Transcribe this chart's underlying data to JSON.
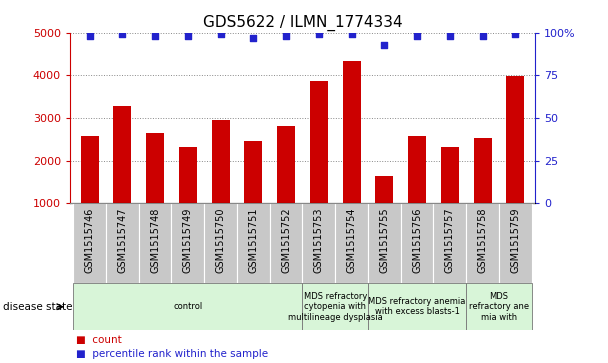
{
  "title": "GDS5622 / ILMN_1774334",
  "samples": [
    "GSM1515746",
    "GSM1515747",
    "GSM1515748",
    "GSM1515749",
    "GSM1515750",
    "GSM1515751",
    "GSM1515752",
    "GSM1515753",
    "GSM1515754",
    "GSM1515755",
    "GSM1515756",
    "GSM1515757",
    "GSM1515758",
    "GSM1515759"
  ],
  "counts": [
    2570,
    3270,
    2640,
    2310,
    2960,
    2460,
    2810,
    3870,
    4330,
    1650,
    2570,
    2320,
    2520,
    3990
  ],
  "percentile_ranks": [
    98,
    99,
    98,
    98,
    99,
    97,
    98,
    99,
    99,
    93,
    98,
    98,
    98,
    99
  ],
  "bar_color": "#cc0000",
  "dot_color": "#2222cc",
  "ylim_left": [
    1000,
    5000
  ],
  "ylim_right": [
    0,
    100
  ],
  "yticks_left": [
    1000,
    2000,
    3000,
    4000,
    5000
  ],
  "yticks_right": [
    0,
    25,
    50,
    75,
    100
  ],
  "yticklabels_right": [
    "0",
    "25",
    "50",
    "75",
    "100%"
  ],
  "disease_groups": [
    {
      "label": "control",
      "start": 0,
      "end": 7
    },
    {
      "label": "MDS refractory\ncytopenia with\nmultilineage dysplasia",
      "start": 7,
      "end": 9
    },
    {
      "label": "MDS refractory anemia\nwith excess blasts-1",
      "start": 9,
      "end": 12
    },
    {
      "label": "MDS\nrefractory ane\nmia with",
      "start": 12,
      "end": 14
    }
  ],
  "disease_state_label": "disease state",
  "legend_count_label": "count",
  "legend_percentile_label": "percentile rank within the sample",
  "background_color": "#ffffff",
  "tick_area_color": "#c8c8c8",
  "disease_area_color": "#d8f5d8",
  "grid_color": "#888888",
  "title_fontsize": 11,
  "axis_fontsize": 8,
  "tick_fontsize": 7,
  "label_fontsize": 7.5
}
